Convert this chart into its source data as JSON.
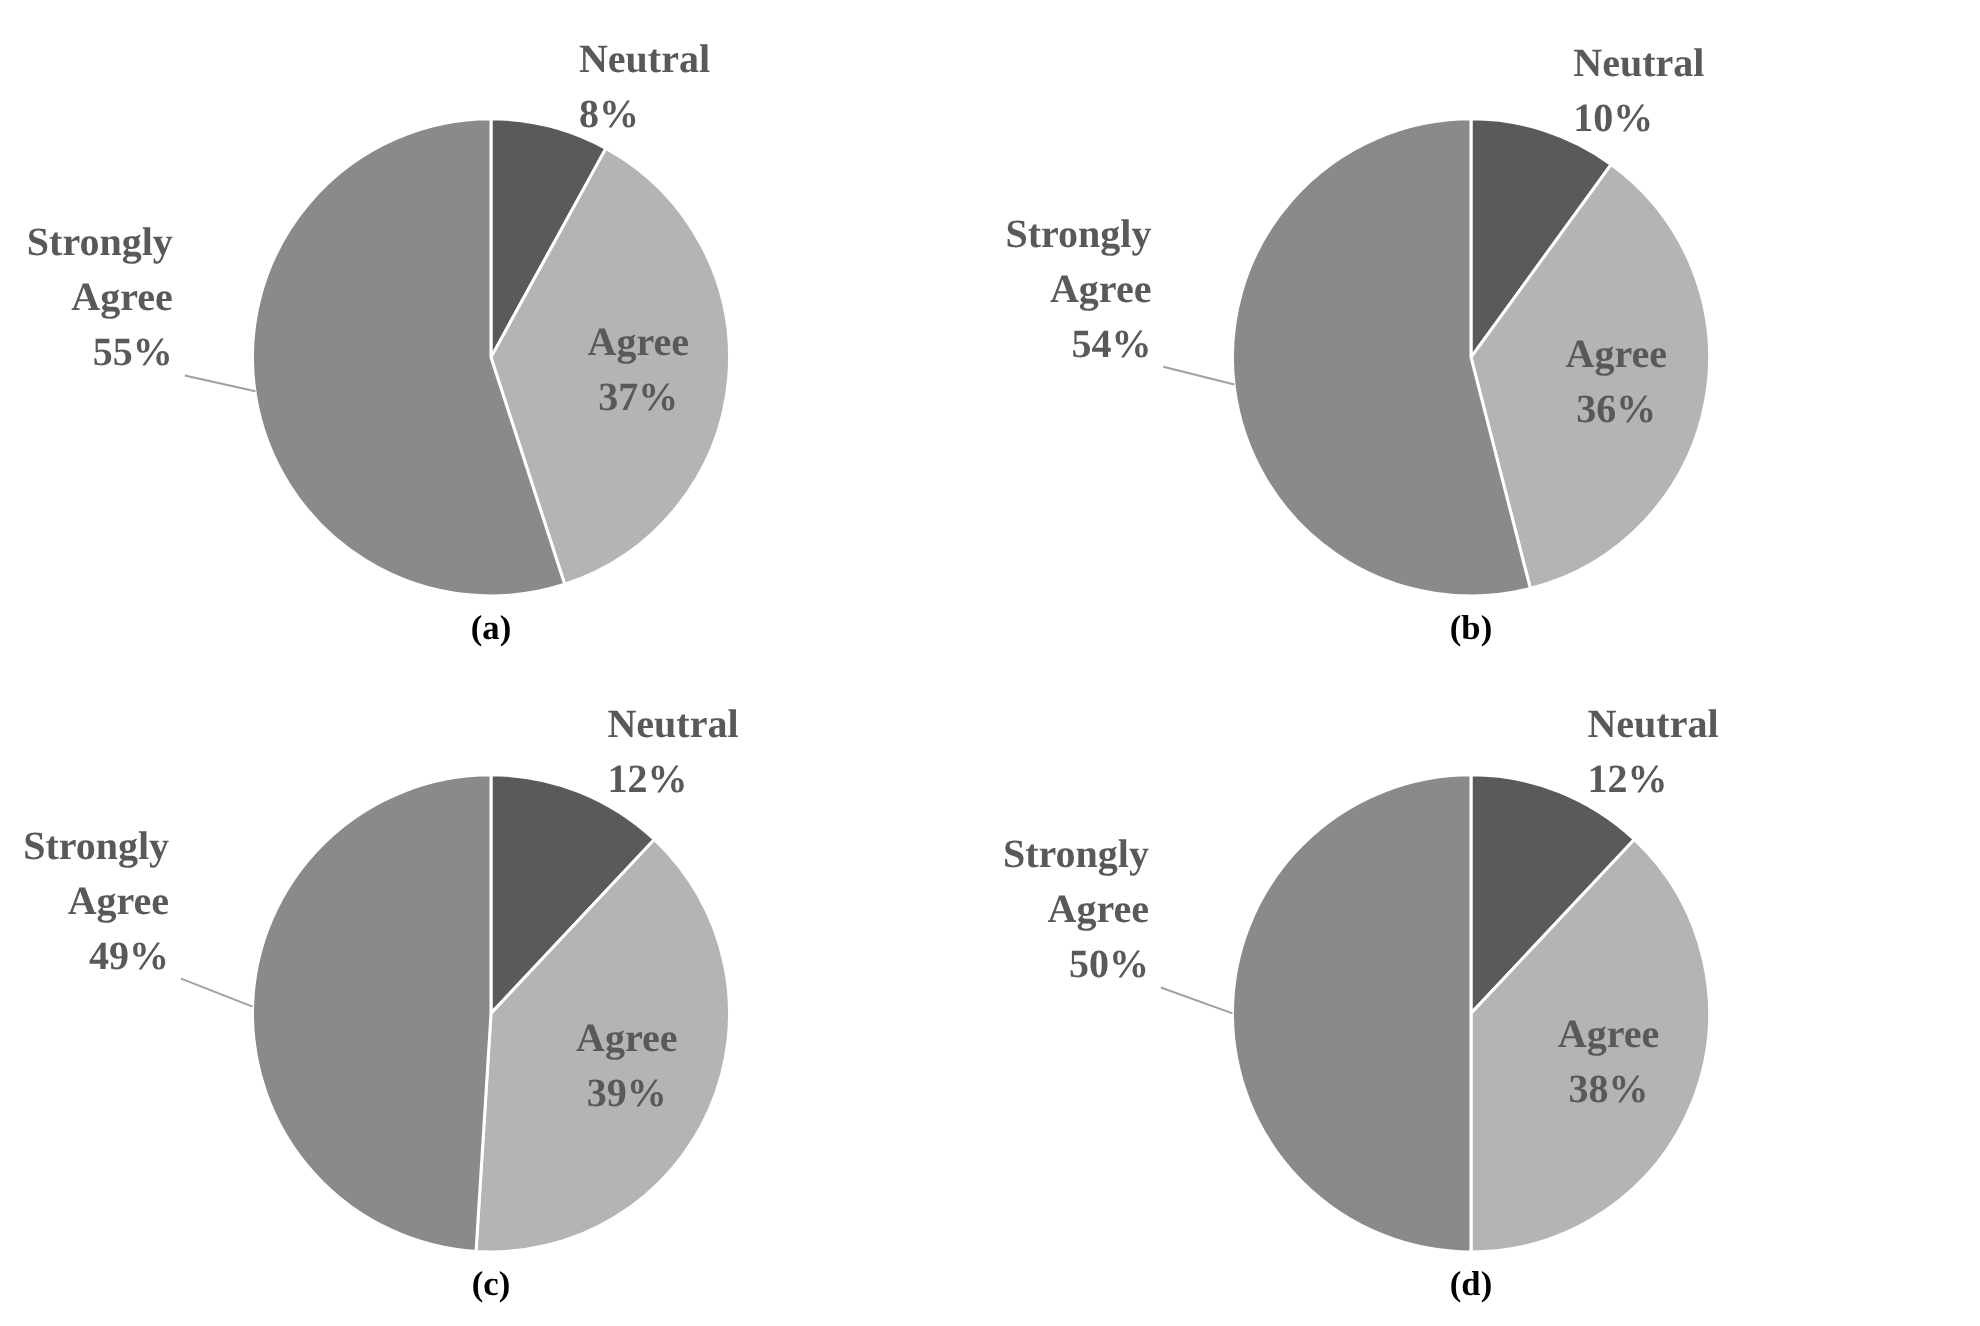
{
  "chart_data": [
    {
      "type": "pie",
      "title": "(a)",
      "categories": [
        "Neutral",
        "Agree",
        "Strongly Agree"
      ],
      "values": [
        8,
        37,
        55
      ],
      "colors": [
        "#5a5a5a",
        "#b4b4b4",
        "#8a8a8a"
      ],
      "value_labels": [
        "8%",
        "37%",
        "55%"
      ]
    },
    {
      "type": "pie",
      "title": "(b)",
      "categories": [
        "Neutral",
        "Agree",
        "Strongly Agree"
      ],
      "values": [
        10,
        36,
        54
      ],
      "colors": [
        "#5a5a5a",
        "#b4b4b4",
        "#8a8a8a"
      ],
      "value_labels": [
        "10%",
        "36%",
        "54%"
      ]
    },
    {
      "type": "pie",
      "title": "(c)",
      "categories": [
        "Neutral",
        "Agree",
        "Strongly Agree"
      ],
      "values": [
        12,
        39,
        49
      ],
      "colors": [
        "#5a5a5a",
        "#b4b4b4",
        "#8a8a8a"
      ],
      "value_labels": [
        "12%",
        "39%",
        "49%"
      ]
    },
    {
      "type": "pie",
      "title": "(d)",
      "categories": [
        "Neutral",
        "Agree",
        "Strongly Agree"
      ],
      "values": [
        12,
        38,
        50
      ],
      "colors": [
        "#5a5a5a",
        "#b4b4b4",
        "#8a8a8a"
      ],
      "value_labels": [
        "12%",
        "38%",
        "50%"
      ]
    }
  ]
}
